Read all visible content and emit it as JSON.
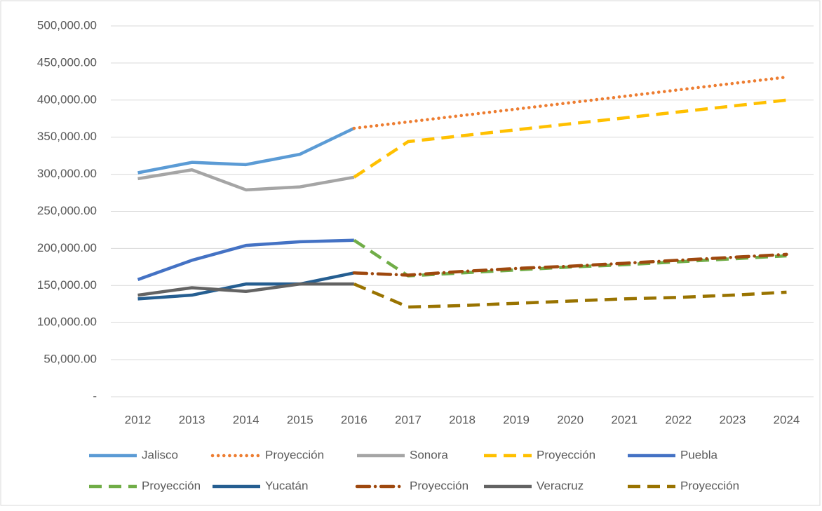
{
  "chart_data": {
    "type": "line",
    "categories": [
      "2012",
      "2013",
      "2014",
      "2015",
      "2016",
      "2017",
      "2018",
      "2019",
      "2020",
      "2021",
      "2022",
      "2023",
      "2024"
    ],
    "ylim": [
      0,
      500000
    ],
    "yticks": [
      {
        "value": 0,
        "label": "-"
      },
      {
        "value": 50000,
        "label": "50,000.00"
      },
      {
        "value": 100000,
        "label": "100,000.00"
      },
      {
        "value": 150000,
        "label": "150,000.00"
      },
      {
        "value": 200000,
        "label": "200,000.00"
      },
      {
        "value": 250000,
        "label": "250,000.00"
      },
      {
        "value": 300000,
        "label": "300,000.00"
      },
      {
        "value": 350000,
        "label": "350,000.00"
      },
      {
        "value": 400000,
        "label": "400,000.00"
      },
      {
        "value": 450000,
        "label": "450,000.00"
      },
      {
        "value": 500000,
        "label": "500,000.00"
      }
    ],
    "grid": true,
    "legend": "bottom",
    "series": [
      {
        "name": "Jalisco",
        "color": "#5b9bd5",
        "dash": "solid",
        "values": [
          302000,
          316000,
          313000,
          327000,
          362000,
          null,
          null,
          null,
          null,
          null,
          null,
          null,
          null
        ]
      },
      {
        "name": "Proyección",
        "color": "#ed7d31",
        "dash": "dotted",
        "values": [
          null,
          null,
          null,
          null,
          362000,
          370600,
          379300,
          387900,
          396500,
          405100,
          413800,
          422400,
          431000
        ]
      },
      {
        "name": "Sonora",
        "color": "#a5a5a5",
        "dash": "solid",
        "values": [
          294000,
          306000,
          279000,
          283000,
          296000,
          null,
          null,
          null,
          null,
          null,
          null,
          null,
          null
        ]
      },
      {
        "name": "Proyección",
        "color": "#ffc000",
        "dash": "dashed",
        "values": [
          null,
          null,
          null,
          null,
          296000,
          344000,
          352000,
          360000,
          368000,
          376000,
          384000,
          392000,
          400000
        ]
      },
      {
        "name": "Puebla",
        "color": "#4472c4",
        "dash": "solid",
        "values": [
          158000,
          184000,
          204000,
          209000,
          211000,
          null,
          null,
          null,
          null,
          null,
          null,
          null,
          null
        ]
      },
      {
        "name": "Proyección",
        "color": "#70ad47",
        "dash": "dashed",
        "values": [
          null,
          null,
          null,
          null,
          211000,
          163000,
          167000,
          171000,
          175000,
          178000,
          182000,
          186000,
          190000
        ]
      },
      {
        "name": "Yucatán",
        "color": "#255e91",
        "dash": "solid",
        "values": [
          132000,
          137000,
          152000,
          152000,
          167000,
          null,
          null,
          null,
          null,
          null,
          null,
          null,
          null
        ]
      },
      {
        "name": "Proyección",
        "color": "#9e480e",
        "dash": "dashdot",
        "values": [
          null,
          null,
          null,
          null,
          167000,
          164000,
          169000,
          173000,
          176000,
          180000,
          184000,
          188000,
          192000
        ]
      },
      {
        "name": "Veracruz",
        "color": "#636363",
        "dash": "solid",
        "values": [
          137000,
          147000,
          142000,
          152000,
          152000,
          null,
          null,
          null,
          null,
          null,
          null,
          null,
          null
        ]
      },
      {
        "name": "Proyección",
        "color": "#997300",
        "dash": "dashed",
        "values": [
          null,
          null,
          null,
          null,
          152000,
          121000,
          123000,
          126000,
          129000,
          132000,
          134000,
          137000,
          141000
        ]
      }
    ]
  }
}
